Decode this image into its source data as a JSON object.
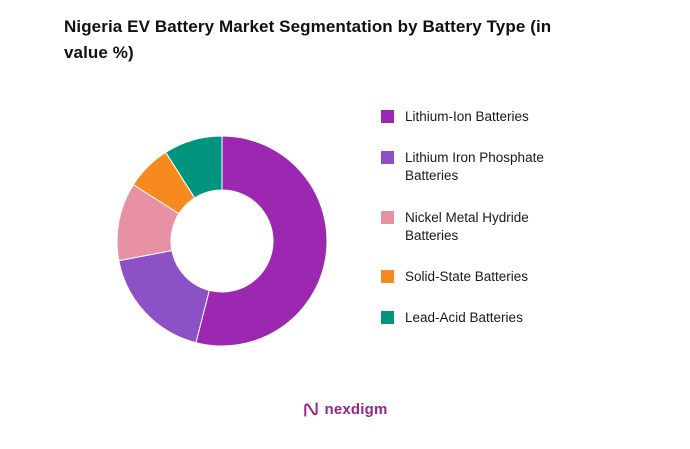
{
  "chart_data": {
    "type": "pie",
    "subtype": "donut",
    "title": "Nigeria EV Battery Market Segmentation by Battery Type (in value %)",
    "categories": [
      "Lithium-Ion Batteries",
      "Lithium Iron Phosphate Batteries",
      "Nickel Metal Hydride Batteries",
      "Solid-State Batteries",
      "Lead-Acid Batteries"
    ],
    "values": [
      54,
      18,
      12,
      7,
      9
    ],
    "colors": [
      "#9C27B0",
      "#8C52C5",
      "#E891A4",
      "#F68A1F",
      "#00947E"
    ],
    "start_angle_deg": 0,
    "direction": "clockwise",
    "donut_hole_ratio": 0.49,
    "legend_position": "right",
    "data_labels": false
  },
  "legend": {
    "items": [
      {
        "label": "Lithium-Ion Batteries"
      },
      {
        "label": "Lithium Iron Phosphate Batteries"
      },
      {
        "label": "Nickel Metal Hydride Batteries"
      },
      {
        "label": "Solid-State Batteries"
      },
      {
        "label": "Lead-Acid Batteries"
      }
    ]
  },
  "footer": {
    "brand": "nexdigm",
    "brand_color": "#92278F"
  }
}
